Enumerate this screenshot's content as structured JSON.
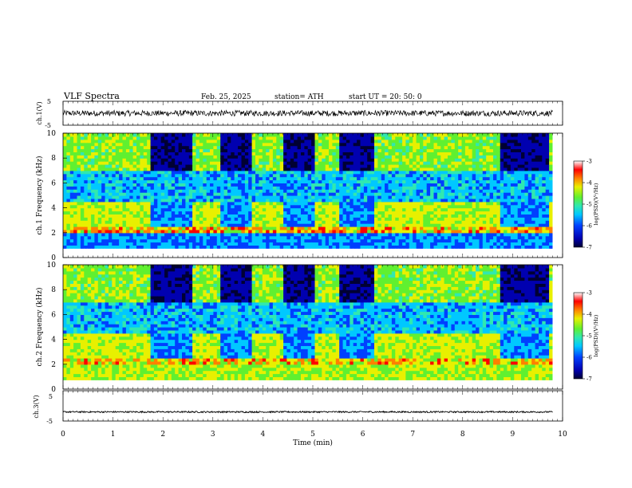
{
  "header": {
    "title": "VLF Spectra",
    "date": "Feb. 25, 2025",
    "station": "station= ATH",
    "start": "start UT = 20: 50: 0"
  },
  "colors": {
    "spec_scale": [
      "#000033",
      "#0000b0",
      "#0040ff",
      "#00c8ff",
      "#30e8b0",
      "#60f030",
      "#e8f000",
      "#ff8000",
      "#ff0000",
      "#ffffff"
    ]
  },
  "chart_data": [
    {
      "type": "line",
      "name": "ch1-waveform",
      "ylabel": "ch.1(V)",
      "ylim": [
        -5,
        5
      ],
      "yticks": [
        "5",
        "-5"
      ],
      "xlim": [
        0,
        10
      ],
      "mean_level": 0,
      "amplitude_range": [
        -1.2,
        1.2
      ]
    },
    {
      "type": "heatmap",
      "name": "ch1-spectrogram",
      "ylabel": "ch.1 Frequency (kHz)",
      "ylim": [
        0,
        10
      ],
      "yticks": [
        "0",
        "2",
        "4",
        "6",
        "8",
        "10"
      ],
      "xlim": [
        0,
        10
      ],
      "gaps_min": [
        [
          1.75,
          2.6
        ],
        [
          3.15,
          3.8
        ],
        [
          4.4,
          5.05
        ],
        [
          5.55,
          6.25
        ],
        [
          8.75,
          9.7
        ]
      ],
      "colorbar": {
        "label": "log(PSD)(V²/Hz)",
        "ticks": [
          "-3",
          "-4",
          "-5",
          "-6",
          "-7"
        ],
        "range": [
          -7,
          -3
        ]
      }
    },
    {
      "type": "heatmap",
      "name": "ch2-spectrogram",
      "ylabel": "ch.2 Frequency (kHz)",
      "ylim": [
        0,
        10
      ],
      "yticks": [
        "0",
        "2",
        "4",
        "6",
        "8",
        "10"
      ],
      "xlim": [
        0,
        10
      ],
      "gaps_min": [
        [
          1.75,
          2.6
        ],
        [
          3.15,
          3.8
        ],
        [
          4.4,
          5.05
        ],
        [
          5.55,
          6.25
        ],
        [
          8.75,
          9.7
        ]
      ],
      "colorbar": {
        "label": "log(PSD)(V²/Hz)",
        "ticks": [
          "-3",
          "-4",
          "-5",
          "-6",
          "-7"
        ],
        "range": [
          -7,
          -3
        ]
      }
    },
    {
      "type": "line",
      "name": "ch3-waveform",
      "ylabel": "ch.3(V)",
      "ylim": [
        -5,
        5
      ],
      "yticks": [
        "5",
        "-5"
      ],
      "xlim": [
        0,
        10
      ],
      "mean_level": -2,
      "amplitude_range": [
        -0.25,
        0.25
      ]
    }
  ],
  "xaxis": {
    "label": "Time (min)",
    "ticks": [
      "0",
      "1",
      "2",
      "3",
      "4",
      "5",
      "6",
      "7",
      "8",
      "9",
      "10"
    ]
  }
}
